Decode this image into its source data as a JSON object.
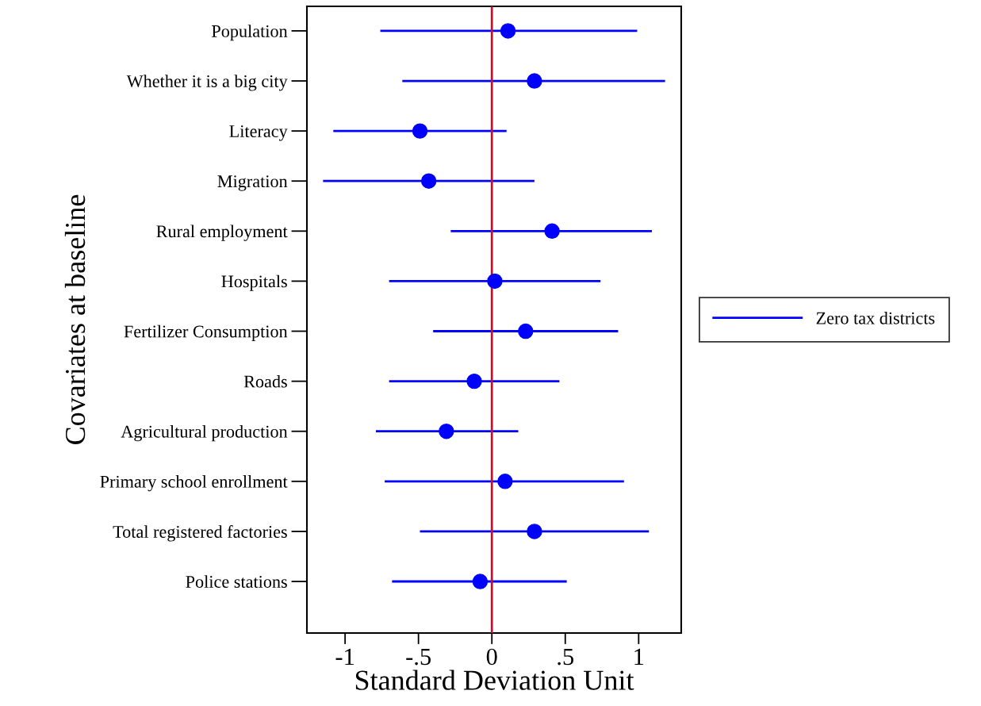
{
  "chart_data": {
    "type": "scatter",
    "orientation": "horizontal",
    "categories": [
      "Population",
      "Whether it is a big city",
      "Literacy",
      "Migration",
      "Rural employment",
      "Hospitals",
      "Fertilizer Consumption",
      "Roads",
      "Agricultural production",
      "Primary school enrollment",
      "Total registered factories",
      "Police stations"
    ],
    "series": [
      {
        "name": "Zero tax districts",
        "color": "#0000ff",
        "values": [
          0.11,
          0.29,
          -0.49,
          -0.43,
          0.41,
          0.02,
          0.23,
          -0.12,
          -0.31,
          0.09,
          0.29,
          -0.08
        ],
        "errors": [
          [
            -0.76,
            0.99
          ],
          [
            -0.61,
            1.18
          ],
          [
            -1.08,
            0.1
          ],
          [
            -1.15,
            0.29
          ],
          [
            -0.28,
            1.09
          ],
          [
            -0.7,
            0.74
          ],
          [
            -0.4,
            0.86
          ],
          [
            -0.7,
            0.46
          ],
          [
            -0.79,
            0.18
          ],
          [
            -0.73,
            0.9
          ],
          [
            -0.49,
            1.07
          ],
          [
            -0.68,
            0.51
          ]
        ]
      }
    ],
    "xlabel": "Standard Deviation Unit",
    "ylabel": "Covariates at baseline",
    "xlim": [
      -1.26,
      1.29
    ],
    "xticks": [
      -1,
      {
        "value": -0.5,
        "label": "-.5"
      },
      0,
      {
        "value": 0.5,
        "label": ".5"
      },
      1
    ],
    "ref_lines": [
      {
        "axis": "x",
        "value": 0,
        "color": "#c8102e"
      }
    ],
    "marker": "circle",
    "legend": "right",
    "grid": false
  }
}
